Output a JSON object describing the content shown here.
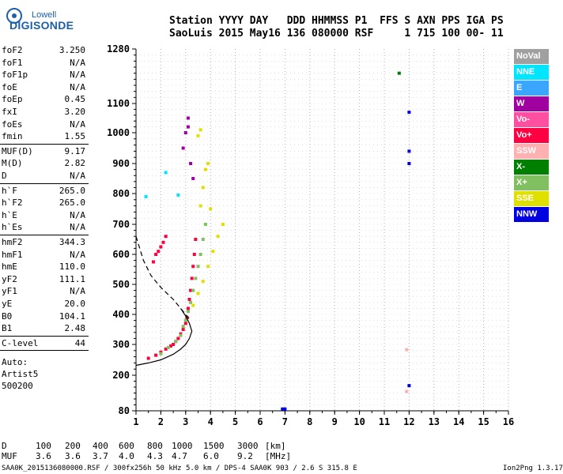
{
  "logo": {
    "top": "Lowell",
    "main": "DIGISONDE"
  },
  "header": {
    "line1": "Station YYYY DAY   DDD HHMMSS P1  FFS S AXN PPS IGA PS",
    "line2": "SaoLuis 2015 May16 136 080000 RSF     1 715 100 00- 11"
  },
  "params": [
    {
      "label": "foF2",
      "value": "3.250"
    },
    {
      "label": "foF1",
      "value": "N/A"
    },
    {
      "label": "foF1p",
      "value": "N/A"
    },
    {
      "label": "foE",
      "value": "N/A"
    },
    {
      "label": "foEp",
      "value": "0.45"
    },
    {
      "label": "fxI",
      "value": "3.20"
    },
    {
      "label": "foEs",
      "value": "N/A"
    },
    {
      "label": "fmin",
      "value": "1.55"
    },
    {
      "label": "MUF(D)",
      "value": "9.17"
    },
    {
      "label": "M(D)",
      "value": "2.82"
    },
    {
      "label": "D",
      "value": "N/A"
    },
    {
      "label": "h`F",
      "value": "265.0"
    },
    {
      "label": "h`F2",
      "value": "265.0"
    },
    {
      "label": "h`E",
      "value": "N/A"
    },
    {
      "label": "h`Es",
      "value": "N/A"
    },
    {
      "label": "hmF2",
      "value": "344.3"
    },
    {
      "label": "hmF1",
      "value": "N/A"
    },
    {
      "label": "hmE",
      "value": "110.0"
    },
    {
      "label": "yF2",
      "value": "111.1"
    },
    {
      "label": "yF1",
      "value": "N/A"
    },
    {
      "label": "yE",
      "value": "20.0"
    },
    {
      "label": "B0",
      "value": "104.1"
    },
    {
      "label": "B1",
      "value": "2.48"
    },
    {
      "label": "C-level",
      "value": "44"
    }
  ],
  "auto": {
    "line1": "Auto:",
    "line2": "Artist5",
    "line3": "500200"
  },
  "legend": [
    {
      "label": "NoVal",
      "color": "#a0a0a0"
    },
    {
      "label": "NNE",
      "color": "#00e5ff"
    },
    {
      "label": "E",
      "color": "#3aa6ff"
    },
    {
      "label": "W",
      "color": "#a000a0"
    },
    {
      "label": "Vo-",
      "color": "#ff4fa0"
    },
    {
      "label": "Vo+",
      "color": "#ff0040"
    },
    {
      "label": "SSW",
      "color": "#ffb0b0"
    },
    {
      "label": "X-",
      "color": "#008000"
    },
    {
      "label": "X+",
      "color": "#80c060"
    },
    {
      "label": "SSE",
      "color": "#e0e000"
    },
    {
      "label": "NNW",
      "color": "#0000e0"
    }
  ],
  "footer": {
    "d_label": "D",
    "d_values": [
      "100",
      "200",
      "400",
      "600",
      "800",
      "1000",
      "1500",
      "3000",
      "[km]"
    ],
    "muf_label": "MUF",
    "muf_values": [
      "3.6",
      "3.6",
      "3.7",
      "4.0",
      "4.3",
      "4.7",
      "6.0",
      "9.2",
      "[MHz]"
    ],
    "file_line": "SAA0K_2015136080000.RSF / 300fx256h 50 kHz 5.0 km / DPS-4 SAA0K 903 / 2.6 S 315.8 E",
    "version": "Ion2Png 1.3.17"
  },
  "chart_data": {
    "type": "scatter",
    "x_ticks": [
      "1",
      "2",
      "3",
      "4",
      "5",
      "6",
      "7",
      "8",
      "9",
      "10",
      "11",
      "12",
      "13",
      "14",
      "15",
      "16"
    ],
    "y_ticks": [
      "80",
      "200",
      "300",
      "400",
      "500",
      "600",
      "700",
      "800",
      "900",
      "1000",
      "1100",
      "1280"
    ],
    "xlim": [
      1,
      16
    ],
    "ylim": [
      80,
      1280
    ],
    "grid": true,
    "series": [
      {
        "name": "Vo+",
        "color": "#ff0040",
        "points": [
          [
            1.5,
            255
          ],
          [
            1.8,
            265
          ],
          [
            2.0,
            275
          ],
          [
            2.2,
            285
          ],
          [
            2.4,
            295
          ],
          [
            2.5,
            300
          ],
          [
            2.6,
            310
          ],
          [
            2.7,
            320
          ],
          [
            2.8,
            335
          ],
          [
            2.9,
            350
          ],
          [
            3.0,
            370
          ],
          [
            3.05,
            390
          ],
          [
            3.1,
            420
          ],
          [
            3.15,
            450
          ],
          [
            3.2,
            480
          ],
          [
            3.25,
            520
          ],
          [
            3.3,
            560
          ],
          [
            3.35,
            600
          ],
          [
            3.4,
            650
          ],
          [
            1.7,
            575
          ],
          [
            1.8,
            600
          ],
          [
            1.9,
            610
          ],
          [
            2.0,
            625
          ],
          [
            2.1,
            640
          ],
          [
            2.2,
            660
          ]
        ]
      },
      {
        "name": "X+",
        "color": "#80c060",
        "points": [
          [
            2.0,
            270
          ],
          [
            2.3,
            290
          ],
          [
            2.6,
            310
          ],
          [
            2.8,
            330
          ],
          [
            2.9,
            360
          ],
          [
            3.0,
            380
          ],
          [
            3.1,
            410
          ],
          [
            3.2,
            440
          ],
          [
            3.3,
            480
          ],
          [
            3.4,
            520
          ],
          [
            3.5,
            560
          ],
          [
            3.6,
            600
          ],
          [
            3.7,
            650
          ],
          [
            3.8,
            700
          ]
        ]
      },
      {
        "name": "SSE",
        "color": "#e0e000",
        "points": [
          [
            3.3,
            430
          ],
          [
            3.5,
            470
          ],
          [
            3.7,
            510
          ],
          [
            3.9,
            560
          ],
          [
            4.1,
            610
          ],
          [
            4.3,
            660
          ],
          [
            4.5,
            700
          ],
          [
            3.6,
            760
          ],
          [
            3.7,
            820
          ],
          [
            3.8,
            880
          ],
          [
            3.9,
            900
          ],
          [
            4.0,
            750
          ],
          [
            3.5,
            990
          ],
          [
            3.6,
            1010
          ]
        ]
      },
      {
        "name": "W",
        "color": "#a000a0",
        "points": [
          [
            2.9,
            950
          ],
          [
            3.0,
            1000
          ],
          [
            3.1,
            1050
          ],
          [
            3.2,
            900
          ],
          [
            3.3,
            850
          ],
          [
            3.1,
            1020
          ]
        ]
      },
      {
        "name": "NNE",
        "color": "#00e5ff",
        "points": [
          [
            2.2,
            870
          ],
          [
            2.7,
            795
          ],
          [
            1.4,
            790
          ]
        ]
      },
      {
        "name": "NNW",
        "color": "#0000e0",
        "points": [
          [
            12.0,
            1070
          ],
          [
            12.0,
            940
          ],
          [
            12.0,
            900
          ],
          [
            12.0,
            165
          ],
          [
            7.0,
            86
          ],
          [
            6.9,
            86
          ]
        ]
      },
      {
        "name": "X-",
        "color": "#008000",
        "points": [
          [
            11.6,
            1200
          ]
        ]
      },
      {
        "name": "SSW",
        "color": "#ffb0b0",
        "points": [
          [
            11.9,
            283
          ],
          [
            11.9,
            145
          ]
        ]
      }
    ],
    "profile_curve": [
      [
        1.0,
        232
      ],
      [
        1.5,
        240
      ],
      [
        2.0,
        250
      ],
      [
        2.5,
        268
      ],
      [
        2.8,
        285
      ],
      [
        3.0,
        300
      ],
      [
        3.15,
        320
      ],
      [
        3.25,
        344
      ],
      [
        3.15,
        370
      ],
      [
        3.0,
        395
      ],
      [
        2.8,
        420
      ]
    ],
    "muf_curve": [
      [
        1.0,
        660
      ],
      [
        1.3,
        580
      ],
      [
        1.6,
        530
      ],
      [
        2.0,
        490
      ],
      [
        2.5,
        450
      ],
      [
        2.8,
        420
      ],
      [
        3.0,
        400
      ],
      [
        3.2,
        380
      ]
    ]
  }
}
